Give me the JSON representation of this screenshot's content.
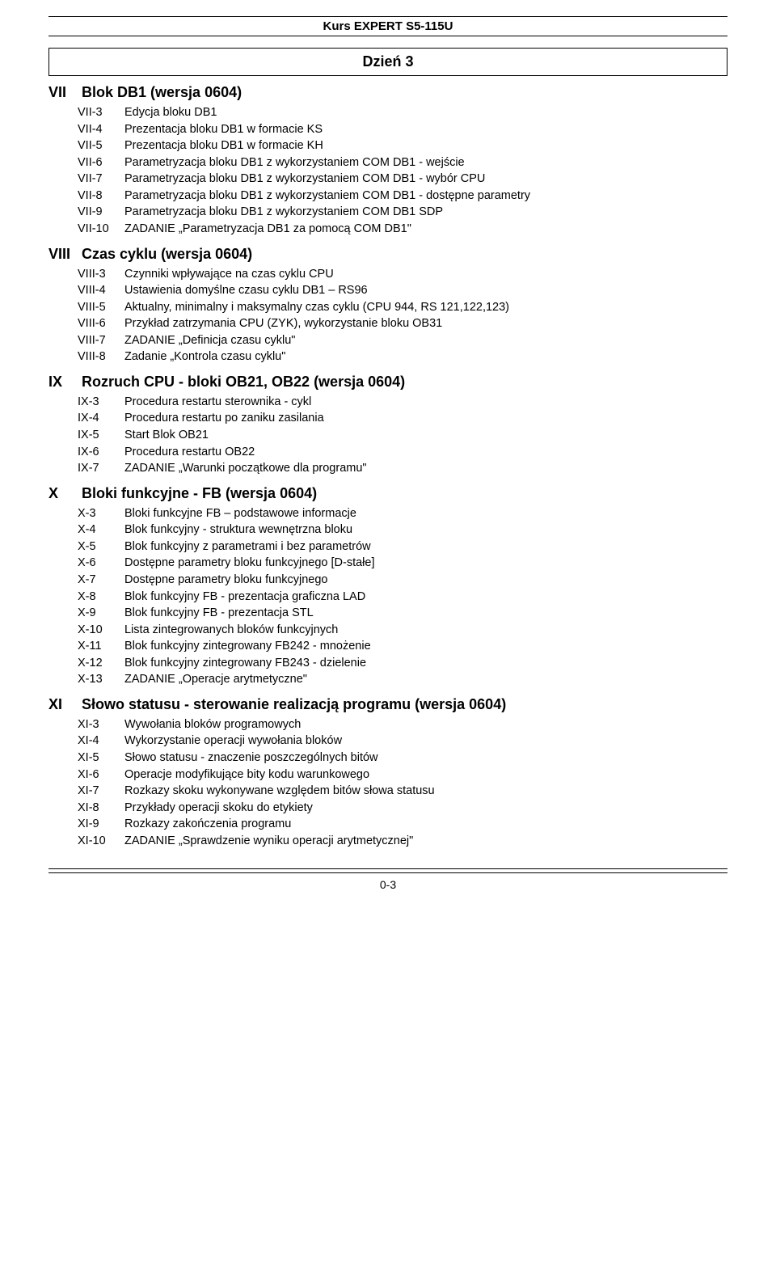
{
  "header": {
    "course": "Kurs EXPERT S5-115U"
  },
  "day": {
    "label": "Dzień 3"
  },
  "sections": [
    {
      "roman": "VII",
      "title": "Blok DB1 (wersja 0604)",
      "items": [
        {
          "code": "VII-3",
          "text": "Edycja bloku DB1"
        },
        {
          "code": "VII-4",
          "text": "Prezentacja bloku DB1 w formacie KS"
        },
        {
          "code": "VII-5",
          "text": "Prezentacja bloku DB1 w formacie KH"
        },
        {
          "code": "VII-6",
          "text": "Parametryzacja bloku DB1 z wykorzystaniem COM DB1 - wejście"
        },
        {
          "code": "VII-7",
          "text": "Parametryzacja bloku DB1 z wykorzystaniem COM DB1 - wybór CPU"
        },
        {
          "code": "VII-8",
          "text": "Parametryzacja bloku DB1 z wykorzystaniem COM DB1 - dostępne parametry"
        },
        {
          "code": "VII-9",
          "text": "Parametryzacja bloku DB1 z wykorzystaniem COM DB1  SDP"
        },
        {
          "code": "VII-10",
          "text": "ZADANIE „Parametryzacja DB1 za pomocą COM DB1\""
        }
      ]
    },
    {
      "roman": "VIII",
      "title": "Czas cyklu (wersja 0604)",
      "items": [
        {
          "code": "VIII-3",
          "text": "Czynniki wpływające na czas cyklu CPU"
        },
        {
          "code": "VIII-4",
          "text": "Ustawienia domyślne czasu cyklu DB1 – RS96"
        },
        {
          "code": "VIII-5",
          "text": "Aktualny, minimalny i maksymalny czas cyklu (CPU 944, RS 121,122,123)"
        },
        {
          "code": "VIII-6",
          "text": "Przykład zatrzymania CPU (ZYK), wykorzystanie bloku OB31"
        },
        {
          "code": "VIII-7",
          "text": "ZADANIE „Definicja czasu cyklu\""
        },
        {
          "code": "VIII-8",
          "text": "Zadanie „Kontrola czasu cyklu\""
        }
      ]
    },
    {
      "roman": "IX",
      "title": "Rozruch CPU - bloki OB21, OB22 (wersja 0604)",
      "items": [
        {
          "code": "IX-3",
          "text": "Procedura restartu sterownika - cykl"
        },
        {
          "code": "IX-4",
          "text": "Procedura restartu po zaniku zasilania"
        },
        {
          "code": "IX-5",
          "text": "Start Blok OB21"
        },
        {
          "code": "IX-6",
          "text": "Procedura restartu OB22"
        },
        {
          "code": "IX-7",
          "text": "ZADANIE „Warunki początkowe dla programu\""
        }
      ]
    },
    {
      "roman": "X",
      "title": "Bloki funkcyjne - FB (wersja 0604)",
      "items": [
        {
          "code": "X-3",
          "text": "Bloki funkcyjne FB – podstawowe informacje"
        },
        {
          "code": "X-4",
          "text": "Blok funkcyjny - struktura wewnętrzna bloku"
        },
        {
          "code": "X-5",
          "text": "Blok funkcyjny z parametrami i bez parametrów"
        },
        {
          "code": "X-6",
          "text": "Dostępne parametry bloku funkcyjnego [D-stałe]"
        },
        {
          "code": "X-7",
          "text": "Dostępne parametry bloku funkcyjnego"
        },
        {
          "code": "X-8",
          "text": "Blok funkcyjny FB - prezentacja graficzna LAD"
        },
        {
          "code": "X-9",
          "text": "Blok funkcyjny FB  - prezentacja STL"
        },
        {
          "code": "X-10",
          "text": "Lista zintegrowanych bloków funkcyjnych"
        },
        {
          "code": "X-11",
          "text": "Blok funkcyjny zintegrowany FB242 - mnożenie"
        },
        {
          "code": "X-12",
          "text": "Blok funkcyjny zintegrowany FB243 - dzielenie"
        },
        {
          "code": "X-13",
          "text": "ZADANIE „Operacje arytmetyczne\""
        }
      ]
    },
    {
      "roman": "XI",
      "title": "Słowo statusu - sterowanie realizacją programu (wersja 0604)",
      "items": [
        {
          "code": "XI-3",
          "text": "Wywołania bloków programowych"
        },
        {
          "code": "XI-4",
          "text": "Wykorzystanie operacji wywołania bloków"
        },
        {
          "code": "XI-5",
          "text": "Słowo statusu - znaczenie poszczególnych bitów"
        },
        {
          "code": "XI-6",
          "text": "Operacje modyfikujące bity kodu warunkowego"
        },
        {
          "code": "XI-7",
          "text": "Rozkazy skoku wykonywane względem bitów słowa statusu"
        },
        {
          "code": "XI-8",
          "text": "Przykłady operacji skoku do etykiety"
        },
        {
          "code": "XI-9",
          "text": "Rozkazy zakończenia programu"
        },
        {
          "code": "XI-10",
          "text": "ZADANIE „Sprawdzenie wyniku operacji arytmetycznej\""
        }
      ]
    }
  ],
  "footer": {
    "page_num": "0-3"
  }
}
